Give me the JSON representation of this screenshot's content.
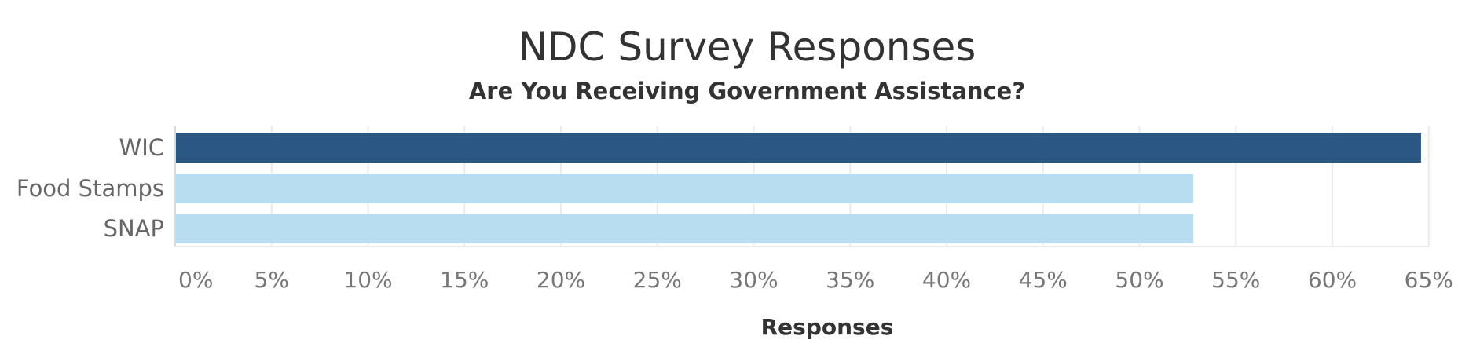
{
  "chart_data": {
    "type": "bar",
    "orientation": "horizontal",
    "title": "NDC Survey Responses",
    "subtitle": "Are You Receiving Government Assistance?",
    "xlabel": "Responses",
    "ylabel": "",
    "categories": [
      "WIC",
      "Food Stamps",
      "SNAP"
    ],
    "values": [
      64.6,
      52.8,
      52.8
    ],
    "value_unit": "%",
    "xlim": [
      0,
      65
    ],
    "x_ticks": [
      "0%",
      "5%",
      "10%",
      "15%",
      "20%",
      "25%",
      "30%",
      "35%",
      "40%",
      "45%",
      "50%",
      "55%",
      "60%",
      "65%"
    ],
    "grid": true,
    "legend": "none",
    "colors": {
      "highlight": "#2a5783",
      "default": "#b9ddf0",
      "grid": "#ebebeb",
      "axis": "#d9d9d9"
    }
  }
}
